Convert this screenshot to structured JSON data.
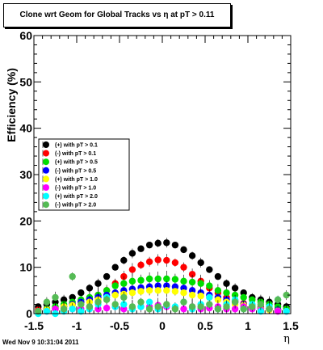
{
  "chart_data": {
    "type": "scatter",
    "title": "Clone wrt Geom for Global Tracks vs   η at pT > 0.11",
    "xlabel": "η",
    "ylabel": "Efficiency (%)",
    "xlim": [
      -1.5,
      1.5
    ],
    "ylim": [
      0,
      60
    ],
    "x_ticks": [
      "-1.5",
      "-1",
      "-0.5",
      "0",
      "0.5",
      "1",
      "1.5"
    ],
    "y_ticks": [
      "0",
      "10",
      "20",
      "30",
      "40",
      "50",
      "60"
    ],
    "grid": false,
    "legend_position": "left-middle",
    "x": [
      -1.45,
      -1.35,
      -1.25,
      -1.15,
      -1.05,
      -0.95,
      -0.85,
      -0.75,
      -0.65,
      -0.55,
      -0.45,
      -0.35,
      -0.25,
      -0.15,
      -0.05,
      0.05,
      0.15,
      0.25,
      0.35,
      0.45,
      0.55,
      0.65,
      0.75,
      0.85,
      0.95,
      1.05,
      1.15,
      1.25,
      1.35,
      1.45
    ],
    "series": [
      {
        "name": "(+) with pT > 0.1",
        "color": "#000000",
        "values": [
          1.5,
          2.0,
          2.5,
          3.0,
          3.5,
          4.5,
          5.5,
          6.5,
          8.0,
          10.0,
          11.5,
          13.0,
          14.0,
          14.8,
          15.2,
          15.3,
          14.8,
          13.8,
          12.5,
          11.0,
          9.5,
          8.0,
          6.5,
          5.5,
          4.5,
          3.5,
          3.0,
          2.5,
          2.0,
          1.5
        ]
      },
      {
        "name": "(-) with pT > 0.1",
        "color": "#ff0000",
        "values": [
          0.8,
          1.0,
          1.3,
          1.6,
          2.0,
          2.5,
          3.2,
          4.0,
          5.0,
          6.5,
          8.0,
          9.5,
          10.5,
          11.2,
          11.6,
          11.5,
          11.0,
          10.0,
          8.5,
          7.0,
          5.5,
          4.5,
          3.5,
          2.8,
          2.2,
          1.8,
          1.4,
          1.1,
          0.9,
          0.7
        ]
      },
      {
        "name": "(+) with pT > 0.5",
        "color": "#00dd00",
        "values": [
          0.5,
          1.0,
          1.5,
          2.0,
          2.5,
          3.0,
          3.5,
          4.0,
          5.0,
          6.0,
          6.5,
          7.0,
          7.2,
          7.5,
          7.5,
          7.5,
          7.4,
          7.0,
          6.8,
          6.5,
          6.0,
          5.0,
          4.5,
          4.0,
          3.5,
          3.0,
          2.5,
          2.0,
          1.5,
          1.0
        ]
      },
      {
        "name": "(-) with pT > 0.5",
        "color": "#0000ff",
        "values": [
          0.5,
          0.8,
          1.0,
          1.5,
          2.0,
          2.5,
          3.0,
          3.5,
          4.0,
          4.5,
          5.0,
          5.3,
          5.6,
          5.8,
          6.0,
          6.0,
          5.8,
          5.5,
          5.0,
          4.5,
          4.0,
          3.5,
          3.0,
          2.5,
          2.0,
          1.5,
          1.2,
          1.0,
          0.8,
          0.5
        ]
      },
      {
        "name": "(+) with pT > 1.0",
        "color": "#ffff00",
        "values": [
          0.5,
          0.8,
          1.0,
          1.5,
          1.8,
          2.0,
          2.5,
          3.0,
          3.5,
          4.0,
          4.2,
          4.5,
          4.8,
          5.0,
          5.0,
          5.0,
          4.8,
          4.5,
          4.0,
          3.8,
          3.5,
          3.0,
          2.5,
          2.0,
          1.8,
          1.5,
          1.0,
          0.8,
          0.6,
          0.5
        ]
      },
      {
        "name": "(-) with pT > 1.0",
        "color": "#ff00ff",
        "values": [
          0.5,
          0.5,
          1.0,
          1.0,
          1.0,
          1.0,
          1.5,
          1.0,
          1.2,
          1.5,
          1.0,
          1.2,
          1.5,
          1.5,
          1.8,
          1.5,
          1.2,
          1.0,
          1.5,
          1.0,
          1.2,
          1.5,
          1.0,
          1.0,
          1.5,
          1.0,
          0.8,
          1.0,
          0.5,
          0.5
        ]
      },
      {
        "name": "(+) with pT > 2.0",
        "color": "#00ffff",
        "values": [
          0,
          0.5,
          0,
          0.5,
          1.0,
          0.5,
          1.0,
          2.0,
          3.5,
          1.5,
          2.0,
          1.0,
          1.5,
          2.5,
          1.0,
          1.8,
          1.5,
          2.5,
          1.0,
          2.0,
          3.5,
          1.0,
          2.0,
          3.0,
          1.0,
          2.0,
          0.5,
          1.5,
          3.0,
          0.5
        ]
      },
      {
        "name": "(-) with pT > 2.0",
        "color": "#55bb55",
        "values": [
          0.5,
          2.5,
          3.5,
          1.0,
          8.0,
          2.0,
          1.5,
          2.5,
          3.0,
          2.0,
          3.5,
          1.5,
          2.5,
          1.0,
          1.5,
          2.0,
          1.0,
          2.5,
          1.5,
          1.5,
          2.0,
          1.0,
          1.5,
          2.5,
          1.0,
          1.5,
          2.0,
          1.0,
          3.0,
          4.0
        ]
      }
    ]
  },
  "footer": {
    "timestamp": "Wed Nov  9 10:31:04 2011"
  },
  "colors": {
    "frame": "#000000",
    "background": "#ffffff"
  }
}
